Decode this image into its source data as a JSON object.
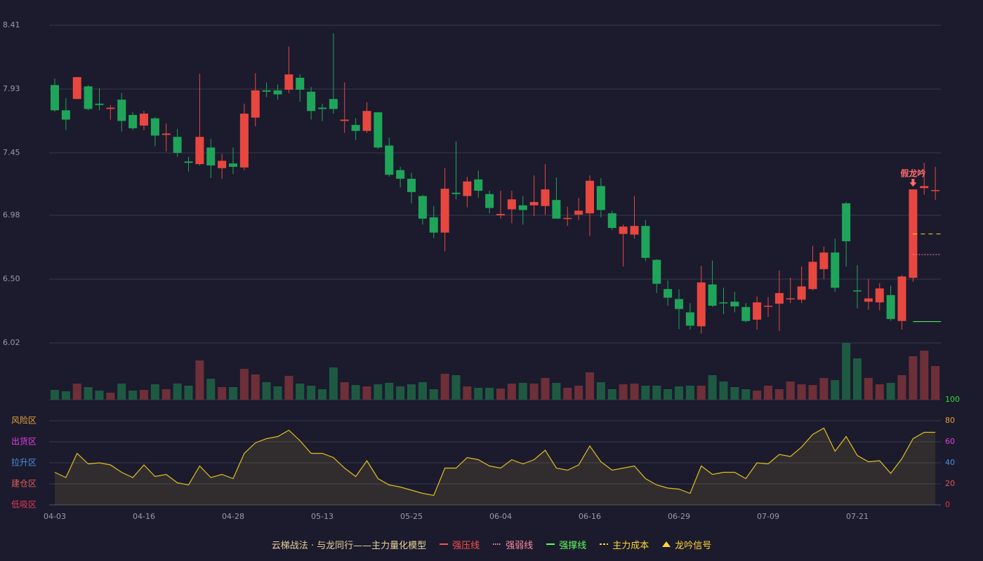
{
  "chart_data": {
    "type": "candlestick",
    "x": [
      "04-03",
      null,
      null,
      null,
      null,
      null,
      null,
      null,
      "04-16",
      null,
      null,
      null,
      null,
      null,
      null,
      null,
      "04-28",
      null,
      null,
      null,
      null,
      null,
      null,
      null,
      "05-13",
      null,
      null,
      null,
      null,
      null,
      null,
      null,
      "05-25",
      null,
      null,
      null,
      null,
      null,
      null,
      null,
      "06-04",
      null,
      null,
      null,
      null,
      null,
      null,
      null,
      "06-16",
      null,
      null,
      null,
      null,
      null,
      null,
      null,
      "06-29",
      null,
      null,
      null,
      null,
      null,
      null,
      null,
      "07-09",
      null,
      null,
      null,
      null,
      null,
      null,
      null,
      "07-21",
      null,
      null,
      null,
      null,
      null,
      null,
      null
    ],
    "open": [
      7.96,
      7.77,
      7.855,
      7.95,
      7.82,
      7.78,
      7.85,
      7.735,
      7.655,
      7.71,
      7.585,
      7.57,
      7.385,
      7.365,
      7.49,
      7.335,
      7.37,
      7.34,
      7.715,
      7.92,
      7.92,
      7.925,
      8.015,
      7.91,
      7.79,
      7.855,
      7.69,
      7.66,
      7.615,
      7.755,
      7.505,
      7.32,
      7.255,
      7.125,
      6.965,
      6.85,
      7.15,
      7.125,
      7.25,
      7.14,
      6.98,
      7.025,
      7.055,
      7.055,
      7.05,
      7.095,
      6.955,
      6.985,
      6.995,
      7.2,
      6.995,
      6.84,
      6.835,
      6.9,
      6.645,
      6.425,
      6.35,
      6.25,
      6.145,
      6.46,
      6.325,
      6.33,
      6.29,
      6.195,
      6.295,
      6.315,
      6.35,
      6.345,
      6.425,
      6.575,
      6.7,
      7.07,
      6.415,
      6.33,
      6.325,
      6.38,
      6.185,
      6.51,
      7.185,
      7.165
    ],
    "close": [
      7.77,
      7.7,
      8.02,
      7.78,
      7.81,
      7.79,
      7.69,
      7.635,
      7.745,
      7.58,
      7.595,
      7.45,
      7.375,
      7.57,
      7.355,
      7.39,
      7.345,
      7.745,
      7.92,
      7.91,
      7.89,
      8.04,
      7.925,
      7.765,
      7.78,
      7.78,
      7.7,
      7.615,
      7.765,
      7.49,
      7.285,
      7.255,
      7.155,
      6.955,
      6.85,
      7.18,
      7.14,
      7.235,
      7.165,
      7.035,
      6.99,
      7.1,
      7.02,
      7.08,
      7.175,
      6.955,
      6.96,
      7.015,
      7.24,
      7.02,
      6.885,
      6.895,
      6.9,
      6.66,
      6.465,
      6.36,
      6.275,
      6.15,
      6.475,
      6.3,
      6.32,
      6.295,
      6.185,
      6.325,
      6.3,
      6.395,
      6.355,
      6.445,
      6.63,
      6.7,
      6.435,
      6.785,
      6.41,
      6.355,
      6.43,
      6.2,
      6.52,
      7.175,
      7.2,
      7.17
    ],
    "high": [
      8.01,
      7.86,
      8.02,
      7.96,
      7.935,
      7.81,
      7.9,
      7.755,
      7.765,
      7.72,
      7.67,
      7.63,
      7.42,
      8.045,
      7.555,
      7.44,
      7.49,
      7.82,
      8.05,
      7.98,
      7.965,
      8.25,
      8.04,
      7.945,
      7.82,
      8.35,
      7.98,
      7.71,
      7.83,
      7.755,
      7.565,
      7.345,
      7.3,
      7.135,
      7.05,
      7.335,
      7.535,
      7.27,
      7.315,
      7.165,
      7.165,
      7.165,
      7.125,
      7.28,
      7.365,
      7.265,
      7.045,
      7.11,
      7.28,
      7.26,
      7.015,
      6.91,
      7.125,
      6.945,
      6.65,
      6.49,
      6.425,
      6.32,
      6.6,
      6.64,
      6.435,
      6.405,
      6.32,
      6.37,
      6.365,
      6.565,
      6.51,
      6.595,
      6.75,
      6.745,
      6.805,
      7.08,
      6.605,
      6.5,
      6.47,
      6.45,
      6.53,
      7.175,
      7.375,
      7.345
    ],
    "low": [
      7.76,
      7.62,
      7.855,
      7.77,
      7.77,
      7.7,
      7.61,
      7.62,
      7.62,
      7.5,
      7.46,
      7.42,
      7.31,
      7.355,
      7.26,
      7.255,
      7.29,
      7.32,
      7.65,
      7.87,
      7.85,
      7.9,
      7.835,
      7.7,
      7.69,
      7.745,
      7.6,
      7.545,
      7.6,
      7.48,
      7.27,
      7.19,
      7.07,
      6.91,
      6.81,
      6.71,
      7.1,
      7.04,
      7.11,
      6.995,
      6.955,
      6.92,
      6.91,
      6.975,
      6.985,
      6.955,
      6.9,
      6.945,
      6.825,
      6.965,
      6.87,
      6.595,
      6.805,
      6.635,
      6.395,
      6.3,
      6.125,
      6.12,
      6.09,
      6.29,
      6.235,
      6.25,
      6.175,
      6.12,
      6.215,
      6.11,
      6.32,
      6.32,
      6.415,
      6.5,
      6.405,
      6.595,
      6.28,
      6.27,
      6.265,
      6.185,
      6.12,
      6.48,
      7.135,
      7.095
    ],
    "volume": [
      14,
      12,
      23,
      18,
      13,
      10,
      23,
      13,
      14,
      22,
      15,
      23,
      20,
      56,
      30,
      18,
      18,
      44,
      36,
      25,
      19,
      34,
      23,
      20,
      15,
      46,
      25,
      21,
      19,
      22,
      24,
      19,
      22,
      25,
      15,
      37,
      35,
      19,
      17,
      17,
      16,
      23,
      24,
      23,
      31,
      24,
      17,
      20,
      39,
      25,
      15,
      22,
      23,
      20,
      20,
      15,
      19,
      20,
      20,
      35,
      26,
      18,
      15,
      13,
      20,
      15,
      26,
      22,
      21,
      31,
      28,
      81,
      59,
      31,
      22,
      24,
      35,
      62,
      70,
      48
    ],
    "indicator": [
      31,
      26,
      49,
      39,
      40,
      38,
      31,
      26,
      38,
      27,
      29,
      21,
      19,
      37,
      26,
      29,
      25,
      49,
      59,
      63,
      65,
      71,
      61,
      49,
      49,
      45,
      35,
      27,
      42,
      25,
      19,
      17,
      14,
      11,
      9,
      35,
      35,
      45,
      43,
      37,
      35,
      43,
      39,
      43,
      52,
      35,
      33,
      38,
      56,
      41,
      33,
      35,
      37,
      25,
      19,
      16,
      15,
      11,
      37,
      29,
      31,
      31,
      25,
      40,
      39,
      48,
      46,
      55,
      67,
      73,
      51,
      65,
      47,
      41,
      42,
      30,
      44,
      63,
      69,
      69
    ],
    "signals": [
      null,
      null,
      null,
      null,
      null,
      null,
      null,
      null,
      null,
      null,
      null,
      null,
      null,
      null,
      null,
      null,
      null,
      null,
      null,
      null,
      null,
      null,
      null,
      null,
      null,
      null,
      null,
      null,
      null,
      null,
      null,
      null,
      null,
      null,
      null,
      null,
      null,
      null,
      null,
      null,
      null,
      null,
      null,
      null,
      null,
      null,
      null,
      null,
      null,
      null,
      null,
      null,
      null,
      null,
      null,
      null,
      null,
      null,
      null,
      null,
      null,
      null,
      null,
      null,
      null,
      null,
      null,
      null,
      null,
      null,
      null,
      null,
      null,
      null,
      null,
      null,
      null,
      "假龙吟",
      null,
      null
    ],
    "ylim": [
      6.02,
      8.41
    ],
    "yticks": [
      8.41,
      7.93,
      7.45,
      6.98,
      {
        "value": 6.5,
        "label": "6.50"
      },
      6.02
    ],
    "indicator_ylim": [
      0,
      100
    ],
    "indicator_ticks": [
      {
        "value": 100,
        "color": "#33dd33"
      },
      {
        "value": 80,
        "color": "#e8a03a"
      },
      {
        "value": 60,
        "color": "#e040e0"
      },
      {
        "value": 40,
        "color": "#4a90e2"
      },
      {
        "value": 20,
        "color": "#e05a5a"
      },
      {
        "value": 0,
        "color": "#e03a3a"
      }
    ],
    "zones": [
      {
        "label": "风险区",
        "value": 80,
        "color": "#e8a03a"
      },
      {
        "label": "出货区",
        "value": 60,
        "color": "#e040e0"
      },
      {
        "label": "拉升区",
        "value": 40,
        "color": "#4a90e2"
      },
      {
        "label": "建仓区",
        "value": 20,
        "color": "#e05a5a"
      },
      {
        "label": "低吸区",
        "value": 0,
        "color": "#e03a5a"
      }
    ],
    "colors": {
      "up": "#e8473f",
      "down": "#1fa55a",
      "volume_up": "#6e2f38",
      "volume_down": "#1e5a42",
      "line": "#e0c020",
      "grid": "#3a3a4e"
    },
    "legend": {
      "title": "云梯战法 · 与龙同行——主力量化模型",
      "title_color": "#e8d29a",
      "items": [
        {
          "name": "强压线",
          "color": "#ff4d4d",
          "style": "solid"
        },
        {
          "name": "强弱线",
          "color": "#ff8aa0",
          "style": "dotted",
          "value": 6.685
        },
        {
          "name": "强撑线",
          "color": "#5dff5d",
          "style": "solid",
          "value": 6.18
        },
        {
          "name": "主力成本",
          "color": "#ffd633",
          "style": "dashed",
          "value": 6.84
        },
        {
          "name": "龙吟信号",
          "color": "#ffd633",
          "style": "triangle"
        }
      ]
    }
  }
}
